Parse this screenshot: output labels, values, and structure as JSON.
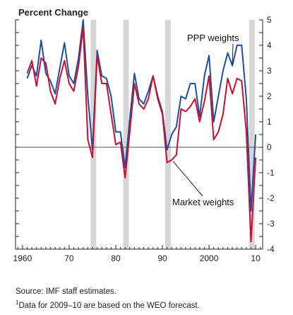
{
  "chart_data": {
    "type": "line",
    "title": "Percent Change",
    "ylim": [
      -4,
      5
    ],
    "xlim": [
      1958.5,
      2011.5
    ],
    "y_ticks": [
      -4,
      -3,
      -2,
      -1,
      0,
      1,
      2,
      3,
      4,
      5
    ],
    "y_tick_labels": [
      "-4",
      "-3",
      "-2",
      "-1",
      "0",
      "1",
      "2",
      "3",
      "4",
      "5"
    ],
    "x_ticks": [
      1960,
      1970,
      1980,
      1990,
      2000,
      2010
    ],
    "x_tick_labels": [
      "1960",
      "70",
      "80",
      "90",
      "2000",
      "10"
    ],
    "recession_bands": [
      [
        1974.6,
        1975.8
      ],
      [
        1981.6,
        1982.8
      ],
      [
        1990.6,
        1991.8
      ],
      [
        2008.6,
        2009.8
      ]
    ],
    "grid": false,
    "x": [
      1961,
      1962,
      1963,
      1964,
      1965,
      1966,
      1967,
      1968,
      1969,
      1970,
      1971,
      1972,
      1973,
      1974,
      1975,
      1976,
      1977,
      1978,
      1979,
      1980,
      1981,
      1982,
      1983,
      1984,
      1985,
      1986,
      1987,
      1988,
      1989,
      1990,
      1991,
      1992,
      1993,
      1994,
      1995,
      1996,
      1997,
      1998,
      1999,
      2000,
      2001,
      2002,
      2003,
      2004,
      2005,
      2006,
      2007,
      2008,
      2009,
      2010
    ],
    "series": [
      {
        "name": "PPP weights",
        "color": "#1f4ea3",
        "values": [
          2.7,
          3.2,
          2.8,
          4.2,
          2.9,
          2.6,
          2.1,
          3.1,
          4.1,
          2.8,
          2.5,
          3.5,
          5.0,
          2.0,
          -0.1,
          3.8,
          2.8,
          2.7,
          2.0,
          0.6,
          0.6,
          -0.8,
          1.1,
          2.9,
          1.9,
          1.7,
          2.2,
          2.8,
          2.0,
          1.4,
          -0.1,
          0.5,
          0.8,
          2.0,
          1.9,
          2.5,
          2.5,
          1.2,
          2.8,
          3.6,
          1.0,
          2.0,
          3.0,
          3.7,
          3.2,
          4.0,
          4.0,
          1.9,
          -2.5,
          0.5
        ]
      },
      {
        "name": "Market weights",
        "color": "#c8102e",
        "values": [
          2.9,
          3.4,
          2.4,
          3.5,
          3.3,
          2.2,
          1.7,
          2.7,
          3.4,
          2.5,
          2.2,
          3.2,
          4.7,
          0.3,
          -0.4,
          3.6,
          2.5,
          2.5,
          1.3,
          0.1,
          0.2,
          -1.2,
          0.6,
          2.5,
          1.7,
          1.5,
          1.9,
          2.8,
          1.9,
          1.3,
          -0.6,
          -0.5,
          -0.3,
          1.5,
          1.4,
          1.6,
          1.9,
          1.0,
          1.8,
          2.8,
          0.3,
          0.6,
          1.3,
          2.7,
          2.1,
          2.7,
          2.6,
          0.6,
          -3.7,
          -0.4
        ]
      }
    ],
    "annotations": [
      {
        "text": "PPP weights",
        "points_to_year": 2005
      },
      {
        "text": "Market weights",
        "points_to_year": 1992
      }
    ]
  },
  "notes": {
    "source": "Source: IMF staff estimates.",
    "footnote_mark": "1",
    "footnote": "Data for 2009–10 are based on the WEO forecast."
  }
}
